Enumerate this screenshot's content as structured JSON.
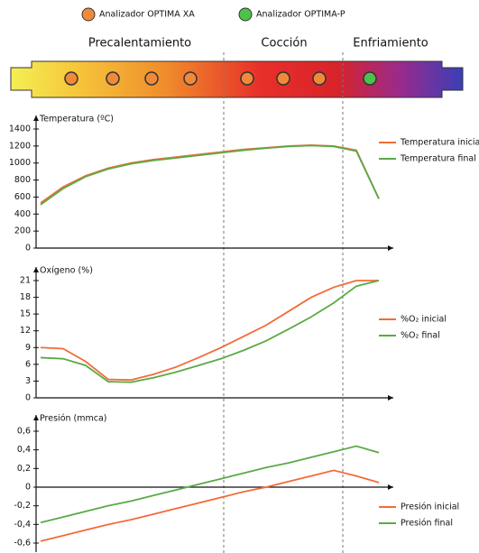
{
  "legend": [
    "Analizador OPTIMA XA",
    "Analizador OPTIMA-P"
  ],
  "zones": [
    "Precalentamiento",
    "Cocción",
    "Enfriamiento"
  ],
  "chart_data": [
    {
      "type": "line",
      "title": "Temperatura (ºC)",
      "categories": [
        null,
        null,
        null,
        null,
        null,
        null,
        null,
        null,
        null,
        null,
        null,
        null,
        null,
        null,
        null,
        null
      ],
      "ylim": [
        0,
        1400
      ],
      "yticks": [
        0,
        200,
        400,
        600,
        800,
        1000,
        1200,
        1400
      ],
      "series": [
        {
          "name": "Temperatura inicial",
          "color": "#f26b3a",
          "values": [
            530,
            720,
            850,
            940,
            1000,
            1040,
            1070,
            1100,
            1130,
            1160,
            1180,
            1200,
            1210,
            1200,
            1150,
            580
          ]
        },
        {
          "name": "Temperatura final",
          "color": "#5aaa46",
          "values": [
            510,
            700,
            840,
            930,
            990,
            1030,
            1060,
            1090,
            1120,
            1150,
            1175,
            1195,
            1205,
            1195,
            1140,
            580
          ]
        }
      ]
    },
    {
      "type": "line",
      "title": "Oxígeno (%)",
      "categories": [
        null,
        null,
        null,
        null,
        null,
        null,
        null,
        null,
        null,
        null,
        null,
        null,
        null,
        null,
        null,
        null
      ],
      "ylim": [
        0,
        21
      ],
      "yticks": [
        0,
        3,
        6,
        9,
        12,
        15,
        18,
        21
      ],
      "series": [
        {
          "name": "%O₂ inicial",
          "color": "#f26b3a",
          "values": [
            9,
            8.8,
            6.5,
            3.3,
            3.2,
            4.2,
            5.5,
            7.2,
            9,
            11,
            13,
            15.5,
            18,
            19.8,
            21,
            21
          ]
        },
        {
          "name": "%O₂ final",
          "color": "#5aaa46",
          "values": [
            7.2,
            7,
            5.8,
            2.9,
            2.8,
            3.6,
            4.6,
            5.8,
            7,
            8.5,
            10.2,
            12.3,
            14.5,
            17,
            20,
            21
          ]
        }
      ]
    },
    {
      "type": "line",
      "title": "Presión (mmca)",
      "categories": [
        null,
        null,
        null,
        null,
        null,
        null,
        null,
        null,
        null,
        null,
        null,
        null,
        null,
        null,
        null,
        null
      ],
      "ylim": [
        -0.6,
        0.6
      ],
      "yticks": [
        {
          "value": 0.6,
          "label": "0,6"
        },
        {
          "value": 0.4,
          "label": "0,4"
        },
        {
          "value": 0.2,
          "label": "0,2"
        },
        0,
        {
          "value": -0.2,
          "label": "-0,2"
        },
        {
          "value": -0.4,
          "label": "-0,4"
        },
        {
          "value": -0.6,
          "label": "-0,6"
        }
      ],
      "series": [
        {
          "name": "Presión inicial",
          "color": "#f26b3a",
          "values": [
            -0.58,
            -0.52,
            -0.46,
            -0.4,
            -0.35,
            -0.29,
            -0.23,
            -0.17,
            -0.11,
            -0.05,
            0.0,
            0.06,
            0.12,
            0.18,
            0.12,
            0.05
          ]
        },
        {
          "name": "Presión final",
          "color": "#5aaa46",
          "values": [
            -0.38,
            -0.32,
            -0.26,
            -0.2,
            -0.15,
            -0.09,
            -0.03,
            0.03,
            0.09,
            0.15,
            0.21,
            0.26,
            0.32,
            0.38,
            0.44,
            0.37
          ]
        }
      ]
    }
  ]
}
